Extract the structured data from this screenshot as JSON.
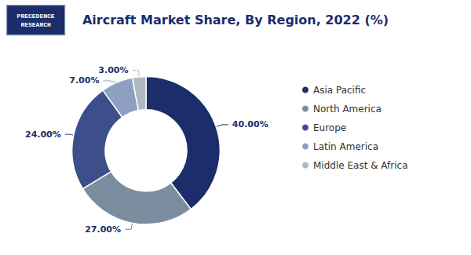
{
  "chart_data": {
    "type": "pie",
    "title": "Aircraft Market Share, By Region, 2022 (%)",
    "categories": [
      "Asia Pacific",
      "North America",
      "Europe",
      "Latin America",
      "Middle East & Africa"
    ],
    "values": [
      40,
      27,
      24,
      7,
      3
    ],
    "value_labels": [
      "40.00%",
      "27.00%",
      "24.00%",
      "7.00%",
      "3.00%"
    ],
    "colors": [
      "#1b2d6b",
      "#7b8ea0",
      "#3d4f8a",
      "#8e9fc2",
      "#b0b8c1"
    ],
    "data_labels": true,
    "legend": "right",
    "annotations": [
      "PRECEDENCE",
      "RESEARCH"
    ]
  }
}
